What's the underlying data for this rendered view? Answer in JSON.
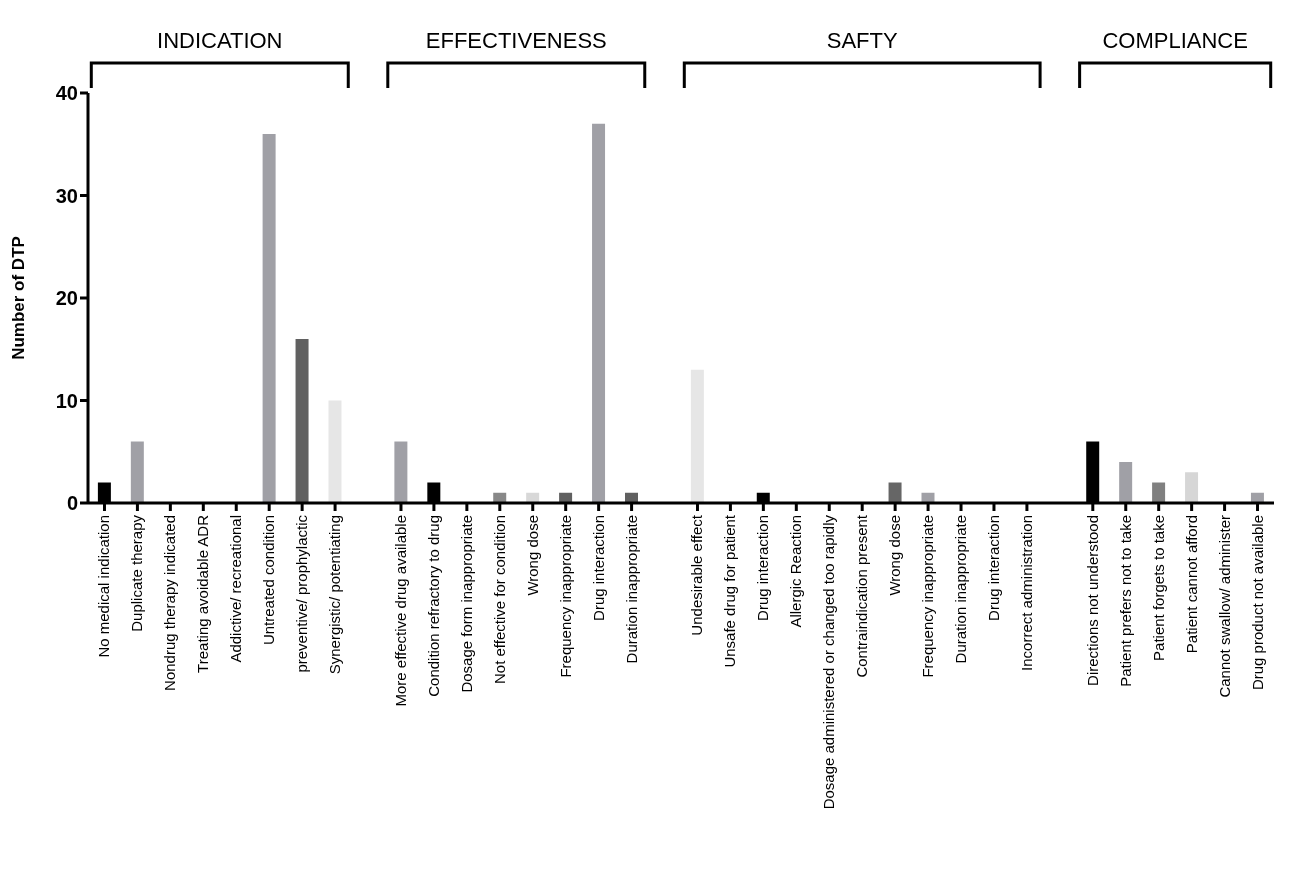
{
  "chart_data": {
    "type": "bar",
    "ylabel": "Number of DTP",
    "annotations": [
      "INDICATION",
      "EFFECTIVENESS",
      "SAFTY",
      "COMPLIANCE"
    ],
    "categories": [
      "No medical indication",
      "Duplicate therapy",
      "Nondrug therapy indicated",
      "Treating avoidable ADR",
      "Addictive/ recreational",
      "Untreated condition",
      "preventive/ prophylactic",
      "Synergistic/ potentiating",
      null,
      "More effective drug available",
      "Condition refractory to drug",
      "Dosage form inappropriate",
      "Not effective for condition",
      "Wrong dose",
      "Frequency inappropriate",
      "Drug interaction",
      "Duration inappropriate",
      null,
      "Undesirable effect",
      "Unsafe drug for patient",
      "Drug interaction",
      "Allergic Reaction",
      "Dosage administered or changed too rapidly",
      "Contraindication present",
      "Wrong dose",
      "Frequency inappropriate",
      "Duration inappropriate",
      "Drug interaction",
      "Incorrect administration",
      null,
      "Directions not understood",
      "Patient prefers not to take",
      "Patient forgets to take",
      "Patient cannot afford",
      "Cannot swallow/ administer",
      "Drug product not available"
    ],
    "values": [
      2,
      6,
      0,
      0,
      0,
      36,
      16,
      10,
      null,
      6,
      2,
      0,
      1,
      1,
      1,
      37,
      1,
      null,
      13,
      0,
      1,
      0,
      0,
      0,
      2,
      1,
      0,
      0,
      0,
      null,
      6,
      4,
      2,
      3,
      0,
      1
    ],
    "colors": [
      "#000000",
      "#a0a0a6",
      "#606060",
      "#e6e6e6",
      "#000000",
      "#a0a0a6",
      "#606060",
      "#e6e6e6",
      "#ffffff",
      "#a0a0a6",
      "#000000",
      "#606060",
      "#888888",
      "#d8d8d8",
      "#606060",
      "#a0a0a6",
      "#606060",
      "#ffffff",
      "#e6e6e6",
      "#a0a0a6",
      "#000000",
      "#606060",
      "#e6e6e6",
      "#000000",
      "#666666",
      "#a0a0a6",
      "#606060",
      "#e6e6e6",
      "#000000",
      "#ffffff",
      "#000000",
      "#a0a0a6",
      "#808080",
      "#d6d6d6",
      "#606060",
      "#a0a0a6"
    ],
    "ylim": [
      0,
      40
    ],
    "yticks": [
      0,
      10,
      20,
      30,
      40
    ],
    "grid": false,
    "legend": false
  }
}
